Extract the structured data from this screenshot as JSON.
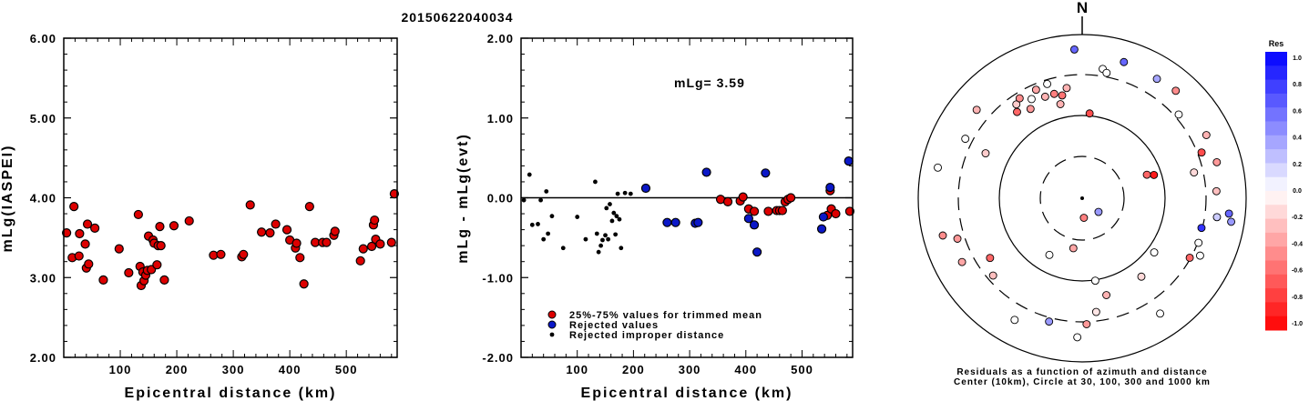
{
  "title": "20150622040034",
  "left_panel": {
    "ylabel": "mLg(IASPEI)",
    "xlabel": "Epicentral distance (km)",
    "yticks": [
      "2.00",
      "3.00",
      "4.00",
      "5.00",
      "6.00"
    ],
    "xticks": [
      "100",
      "200",
      "300",
      "400",
      "500"
    ]
  },
  "middle_panel": {
    "ylabel": "mLg - mLg(evt)",
    "xlabel": "Epicentral distance (km)",
    "yticks": [
      "-2.00",
      "-1.00",
      "0.00",
      "1.00",
      "2.00"
    ],
    "xticks": [
      "100",
      "200",
      "300",
      "400",
      "500"
    ],
    "annotation": "mLg= 3.59",
    "legend": [
      {
        "label": "25%-75% values for trimmed mean",
        "color": "#dd0000"
      },
      {
        "label": "Rejected values",
        "color": "#0b18c8"
      },
      {
        "label": "Rejected improper distance",
        "color": "#000000"
      }
    ]
  },
  "polar_panel": {
    "north_label": "N",
    "caption_line1": "Residuals as a function of azimuth and distance",
    "caption_line2": "Center (10km), Circle at 30, 100, 300 and 1000 km",
    "colorbar_title": "Res",
    "colorbar_ticks": [
      "1.0",
      "0.8",
      "0.6",
      "0.4",
      "0.2",
      "0.0",
      "-0.2",
      "-0.4",
      "-0.6",
      "-0.8",
      "-1.0"
    ]
  },
  "colors": {
    "red": "#dd0000",
    "blue": "#0b18c8",
    "black": "#000000"
  },
  "chart_data": [
    {
      "type": "scatter",
      "name": "mLg vs distance",
      "xlim": [
        0,
        590
      ],
      "ylim": [
        2.0,
        6.0
      ],
      "points": [
        [
          5,
          3.56
        ],
        [
          15,
          3.25
        ],
        [
          18,
          3.89
        ],
        [
          27,
          3.27
        ],
        [
          28,
          3.55
        ],
        [
          38,
          3.42
        ],
        [
          40,
          3.12
        ],
        [
          42,
          3.67
        ],
        [
          44,
          3.17
        ],
        [
          55,
          3.62
        ],
        [
          70,
          2.97
        ],
        [
          98,
          3.36
        ],
        [
          115,
          3.06
        ],
        [
          132,
          3.79
        ],
        [
          135,
          3.14
        ],
        [
          137,
          2.9
        ],
        [
          140,
          3.07
        ],
        [
          142,
          2.96
        ],
        [
          145,
          3.03
        ],
        [
          148,
          3.09
        ],
        [
          150,
          3.52
        ],
        [
          155,
          3.1
        ],
        [
          158,
          3.47
        ],
        [
          160,
          3.43
        ],
        [
          165,
          3.16
        ],
        [
          167,
          3.4
        ],
        [
          170,
          3.64
        ],
        [
          172,
          3.4
        ],
        [
          178,
          2.97
        ],
        [
          195,
          3.65
        ],
        [
          222,
          3.71
        ],
        [
          265,
          3.28
        ],
        [
          278,
          3.29
        ],
        [
          315,
          3.26
        ],
        [
          318,
          3.29
        ],
        [
          330,
          3.91
        ],
        [
          350,
          3.57
        ],
        [
          365,
          3.56
        ],
        [
          375,
          3.67
        ],
        [
          395,
          3.6
        ],
        [
          400,
          3.47
        ],
        [
          410,
          3.37
        ],
        [
          412,
          3.43
        ],
        [
          418,
          3.25
        ],
        [
          425,
          2.92
        ],
        [
          435,
          3.89
        ],
        [
          445,
          3.44
        ],
        [
          458,
          3.44
        ],
        [
          465,
          3.44
        ],
        [
          478,
          3.53
        ],
        [
          480,
          3.58
        ],
        [
          525,
          3.21
        ],
        [
          530,
          3.36
        ],
        [
          545,
          3.39
        ],
        [
          548,
          3.66
        ],
        [
          550,
          3.72
        ],
        [
          552,
          3.48
        ],
        [
          560,
          3.42
        ],
        [
          580,
          3.44
        ],
        [
          585,
          4.05
        ]
      ]
    },
    {
      "type": "scatter",
      "name": "residuals vs distance",
      "xlim": [
        0,
        590
      ],
      "ylim": [
        -2.0,
        2.0
      ],
      "trimmed_mean_mLg": 3.59,
      "series": [
        {
          "name": "25%-75% values for trimmed mean",
          "color": "#dd0000",
          "points": [
            [
              355,
              -0.02
            ],
            [
              368,
              -0.05
            ],
            [
              390,
              -0.04
            ],
            [
              395,
              0.01
            ],
            [
              405,
              -0.14
            ],
            [
              415,
              -0.17
            ],
            [
              440,
              -0.17
            ],
            [
              455,
              -0.16
            ],
            [
              460,
              -0.16
            ],
            [
              465,
              -0.16
            ],
            [
              470,
              -0.05
            ],
            [
              475,
              -0.02
            ],
            [
              480,
              0.0
            ],
            [
              545,
              -0.22
            ],
            [
              550,
              0.09
            ],
            [
              552,
              -0.14
            ],
            [
              560,
              -0.2
            ],
            [
              585,
              -0.17
            ]
          ]
        },
        {
          "name": "Rejected values",
          "color": "#0b18c8",
          "points": [
            [
              222,
              0.12
            ],
            [
              260,
              -0.31
            ],
            [
              275,
              -0.31
            ],
            [
              310,
              -0.32
            ],
            [
              315,
              -0.31
            ],
            [
              330,
              0.32
            ],
            [
              405,
              -0.26
            ],
            [
              415,
              -0.34
            ],
            [
              420,
              -0.68
            ],
            [
              435,
              0.31
            ],
            [
              535,
              -0.39
            ],
            [
              538,
              -0.24
            ],
            [
              550,
              0.13
            ],
            [
              583,
              0.46
            ]
          ]
        },
        {
          "name": "Rejected improper distance",
          "color": "#000000",
          "points": [
            [
              5,
              -0.03
            ],
            [
              15,
              0.29
            ],
            [
              20,
              -0.34
            ],
            [
              30,
              -0.33
            ],
            [
              35,
              -0.03
            ],
            [
              40,
              -0.52
            ],
            [
              45,
              0.08
            ],
            [
              48,
              -0.45
            ],
            [
              55,
              -0.23
            ],
            [
              75,
              -0.63
            ],
            [
              100,
              -0.24
            ],
            [
              115,
              -0.52
            ],
            [
              132,
              0.2
            ],
            [
              135,
              -0.45
            ],
            [
              138,
              -0.68
            ],
            [
              142,
              -0.6
            ],
            [
              145,
              -0.53
            ],
            [
              150,
              -0.47
            ],
            [
              152,
              -0.13
            ],
            [
              155,
              -0.52
            ],
            [
              158,
              -0.08
            ],
            [
              162,
              -0.29
            ],
            [
              165,
              -0.19
            ],
            [
              168,
              -0.46
            ],
            [
              170,
              -0.23
            ],
            [
              172,
              0.05
            ],
            [
              175,
              -0.27
            ],
            [
              178,
              -0.63
            ],
            [
              185,
              0.06
            ],
            [
              195,
              0.05
            ]
          ]
        }
      ]
    },
    {
      "type": "scatter",
      "name": "residuals by azimuth and distance",
      "radial_circles_km": [
        30,
        100,
        300,
        1000
      ],
      "center_km": 10,
      "color_scale": {
        "min": -1.0,
        "max": 1.0
      },
      "points": [
        {
          "az": 9,
          "r": 0.8,
          "res": 0.0
        },
        {
          "az": 11,
          "r": 0.78,
          "res": 0.0
        },
        {
          "az": 17,
          "r": 0.87,
          "res": 0.6
        },
        {
          "az": 32,
          "r": 0.86,
          "res": 0.35
        },
        {
          "az": 41,
          "r": 0.87,
          "res": -0.45
        },
        {
          "az": 49,
          "r": 0.78,
          "res": 0.0
        },
        {
          "az": 63,
          "r": 0.85,
          "res": -0.3
        },
        {
          "az": 75,
          "r": 0.85,
          "res": -0.4
        },
        {
          "az": 69,
          "r": 0.78,
          "res": -0.7
        },
        {
          "az": 77,
          "r": 0.7,
          "res": -0.15
        },
        {
          "az": 87,
          "r": 0.82,
          "res": -0.25
        },
        {
          "az": 96,
          "r": 0.9,
          "res": 0.6
        },
        {
          "az": 99,
          "r": 0.92,
          "res": 0.4
        },
        {
          "az": 98,
          "r": 0.83,
          "res": 0.2
        },
        {
          "az": 104,
          "r": 0.75,
          "res": 0.8
        },
        {
          "az": 111,
          "r": 0.76,
          "res": 0.0
        },
        {
          "az": 116,
          "r": 0.8,
          "res": 0.0
        },
        {
          "az": 119,
          "r": 0.75,
          "res": -0.6
        },
        {
          "az": 127,
          "r": 0.55,
          "res": 0.0
        },
        {
          "az": 143,
          "r": 0.6,
          "res": -0.15
        },
        {
          "az": 146,
          "r": 0.85,
          "res": 0.0
        },
        {
          "az": 171,
          "r": 0.51,
          "res": 0.0
        },
        {
          "az": 166,
          "r": 0.61,
          "res": -0.3
        },
        {
          "az": 173,
          "r": 0.7,
          "res": -0.1
        },
        {
          "az": 178,
          "r": 0.77,
          "res": -0.4
        },
        {
          "az": 182,
          "r": 0.85,
          "res": 0.0
        },
        {
          "az": 195,
          "r": 0.78,
          "res": 0.4
        },
        {
          "az": 209,
          "r": 0.85,
          "res": 0.0
        },
        {
          "az": 229,
          "r": 0.72,
          "res": -0.25
        },
        {
          "az": 242,
          "r": 0.83,
          "res": -0.35
        },
        {
          "az": 237,
          "r": 0.67,
          "res": -0.6
        },
        {
          "az": 252,
          "r": 0.8,
          "res": -0.4
        },
        {
          "az": 255,
          "r": 0.88,
          "res": -0.45
        },
        {
          "az": 282,
          "r": 0.9,
          "res": 0.0
        },
        {
          "az": 295,
          "r": 0.65,
          "res": -0.2
        },
        {
          "az": 297,
          "r": 0.8,
          "res": 0.0
        },
        {
          "az": 310,
          "r": 0.84,
          "res": -0.3
        },
        {
          "az": 323,
          "r": 0.66,
          "res": -0.6
        },
        {
          "az": 325,
          "r": 0.7,
          "res": -0.2
        },
        {
          "az": 328,
          "r": 0.72,
          "res": -0.45
        },
        {
          "az": 330,
          "r": 0.63,
          "res": -0.4
        },
        {
          "az": 333,
          "r": 0.68,
          "res": 0.0
        },
        {
          "az": 337,
          "r": 0.72,
          "res": -0.35
        },
        {
          "az": 340,
          "r": 0.66,
          "res": -0.3
        },
        {
          "az": 343,
          "r": 0.73,
          "res": 0.0
        },
        {
          "az": 345,
          "r": 0.66,
          "res": -0.5
        },
        {
          "az": 347,
          "r": 0.59,
          "res": -0.3
        },
        {
          "az": 349,
          "r": 0.64,
          "res": -0.55
        },
        {
          "az": 352,
          "r": 0.68,
          "res": -0.3
        },
        {
          "az": 357,
          "r": 0.91,
          "res": 0.6
        },
        {
          "az": 5,
          "r": 0.52,
          "res": -0.7
        },
        {
          "az": 72,
          "r": 0.46,
          "res": -0.9
        },
        {
          "az": 70,
          "r": 0.42,
          "res": -0.6
        },
        {
          "az": 130,
          "r": 0.13,
          "res": 0.4
        },
        {
          "az": 175,
          "r": 0.12,
          "res": -0.5
        },
        {
          "az": 210,
          "r": 0.4,
          "res": 0.0
        },
        {
          "az": 190,
          "r": 0.31,
          "res": -0.35
        }
      ]
    }
  ]
}
